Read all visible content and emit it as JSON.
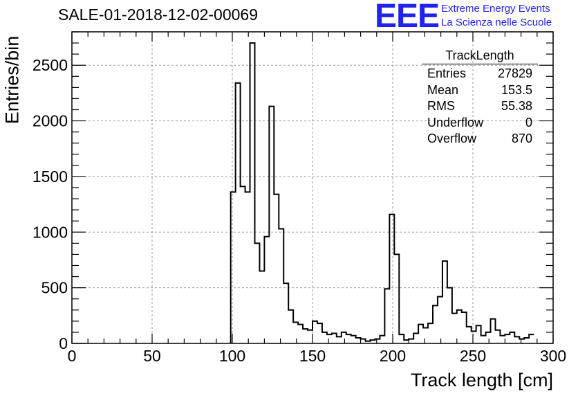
{
  "title": "SALE-01-2018-12-02-00069",
  "logo": {
    "mark": "EEE",
    "line1": "Extreme Energy Events",
    "line2": "La Scienza nelle Scuole"
  },
  "stats": {
    "name": "TrackLength",
    "rows": [
      {
        "label": "Entries",
        "value": "27829"
      },
      {
        "label": "Mean",
        "value": "153.5"
      },
      {
        "label": "RMS",
        "value": "55.38"
      },
      {
        "label": "Underflow",
        "value": "0"
      },
      {
        "label": "Overflow",
        "value": "870"
      }
    ]
  },
  "colors": {
    "line": "#000000",
    "grid": "#999999",
    "logo": "#2222ee"
  },
  "chart_data": {
    "type": "bar",
    "style": "step-histogram",
    "title": "SALE-01-2018-12-02-00069",
    "xlabel": "Track length [cm]",
    "ylabel": "Entries/bin",
    "xlim": [
      0,
      300
    ],
    "ylim": [
      0,
      2800
    ],
    "grid": true,
    "xticks": [
      0,
      50,
      100,
      150,
      200,
      250,
      300
    ],
    "yticks": [
      0,
      500,
      1000,
      1500,
      2000,
      2500
    ],
    "bin_width": 3,
    "bin_start": 99,
    "values": [
      1360,
      2340,
      1410,
      1360,
      2700,
      900,
      650,
      960,
      2130,
      1340,
      1030,
      540,
      300,
      190,
      170,
      130,
      120,
      200,
      180,
      100,
      80,
      90,
      60,
      100,
      80,
      70,
      50,
      40,
      20,
      30,
      40,
      70,
      490,
      1160,
      800,
      80,
      30,
      40,
      90,
      170,
      140,
      180,
      340,
      420,
      740,
      500,
      270,
      300,
      280,
      150,
      110,
      160,
      70,
      100,
      220,
      120,
      70,
      80,
      100,
      60,
      40,
      50,
      80
    ]
  }
}
